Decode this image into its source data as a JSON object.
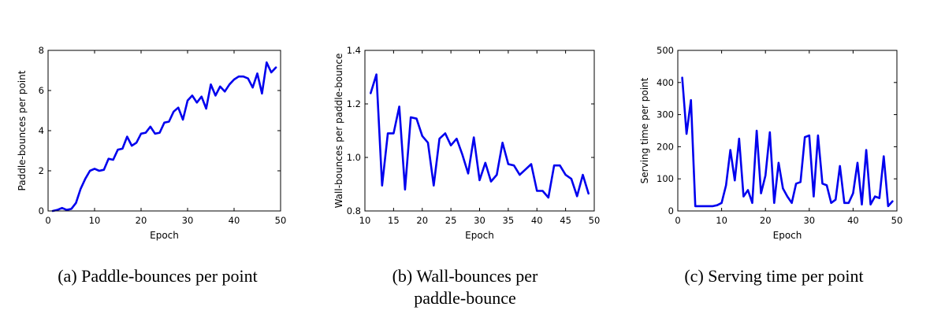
{
  "chart_data": [
    {
      "type": "line",
      "xlabel": "Epoch",
      "ylabel": "Paddle-bounces per point",
      "caption": "(a) Paddle-bounces per point",
      "xlim": [
        0,
        50
      ],
      "ylim": [
        0,
        8
      ],
      "xticks": [
        "0",
        "10",
        "20",
        "30",
        "40",
        "50"
      ],
      "yticks": [
        "0",
        "2",
        "4",
        "6",
        "8"
      ],
      "color": "#0000ee",
      "x": [
        1,
        2,
        3,
        4,
        5,
        6,
        7,
        8,
        9,
        10,
        11,
        12,
        13,
        14,
        15,
        16,
        17,
        18,
        19,
        20,
        21,
        22,
        23,
        24,
        25,
        26,
        27,
        28,
        29,
        30,
        31,
        32,
        33,
        34,
        35,
        36,
        37,
        38,
        39,
        40,
        41,
        42,
        43,
        44,
        45,
        46,
        47,
        48,
        49
      ],
      "values": [
        0.0,
        0.05,
        0.15,
        0.05,
        0.1,
        0.4,
        1.1,
        1.6,
        2.0,
        2.1,
        2.0,
        2.05,
        2.6,
        2.55,
        3.05,
        3.1,
        3.7,
        3.25,
        3.4,
        3.85,
        3.9,
        4.2,
        3.85,
        3.9,
        4.4,
        4.45,
        4.95,
        5.15,
        4.55,
        5.5,
        5.75,
        5.4,
        5.7,
        5.1,
        6.3,
        5.75,
        6.2,
        5.95,
        6.3,
        6.55,
        6.7,
        6.7,
        6.6,
        6.15,
        6.85,
        5.85,
        7.4,
        6.9,
        7.15
      ]
    },
    {
      "type": "line",
      "xlabel": "Epoch",
      "ylabel": "Wall-bounces per paddle-bounce",
      "caption": "(b) Wall-bounces per paddle-bounce",
      "xlim": [
        10,
        50
      ],
      "ylim": [
        0.8,
        1.4
      ],
      "xticks": [
        "10",
        "15",
        "20",
        "25",
        "30",
        "35",
        "40",
        "45",
        "50"
      ],
      "yticks": [
        "0.8",
        "1.0",
        "1.2",
        "1.4"
      ],
      "color": "#0000ee",
      "x": [
        11,
        12,
        13,
        14,
        15,
        16,
        17,
        18,
        19,
        20,
        21,
        22,
        23,
        24,
        25,
        26,
        27,
        28,
        29,
        30,
        31,
        32,
        33,
        34,
        35,
        36,
        37,
        38,
        39,
        40,
        41,
        42,
        43,
        44,
        45,
        46,
        47,
        48,
        49
      ],
      "values": [
        1.24,
        1.31,
        0.895,
        1.09,
        1.09,
        1.19,
        0.88,
        1.15,
        1.145,
        1.08,
        1.055,
        0.895,
        1.07,
        1.09,
        1.045,
        1.07,
        1.01,
        0.94,
        1.075,
        0.915,
        0.98,
        0.91,
        0.935,
        1.055,
        0.975,
        0.97,
        0.935,
        0.955,
        0.975,
        0.875,
        0.875,
        0.85,
        0.97,
        0.97,
        0.935,
        0.92,
        0.855,
        0.935,
        0.865
      ]
    },
    {
      "type": "line",
      "xlabel": "Epoch",
      "ylabel": "Serving time per point",
      "caption": "(c) Serving time per point",
      "xlim": [
        0,
        50
      ],
      "ylim": [
        0,
        500
      ],
      "xticks": [
        "0",
        "10",
        "20",
        "30",
        "40",
        "50"
      ],
      "yticks": [
        "0",
        "100",
        "200",
        "300",
        "400",
        "500"
      ],
      "color": "#0000ee",
      "x": [
        1,
        2,
        3,
        4,
        5,
        6,
        7,
        8,
        9,
        10,
        11,
        12,
        13,
        14,
        15,
        16,
        17,
        18,
        19,
        20,
        21,
        22,
        23,
        24,
        25,
        26,
        27,
        28,
        29,
        30,
        31,
        32,
        33,
        34,
        35,
        36,
        37,
        38,
        39,
        40,
        41,
        42,
        43,
        44,
        45,
        46,
        47,
        48,
        49
      ],
      "values": [
        415,
        240,
        345,
        15,
        15,
        15,
        15,
        15,
        18,
        25,
        80,
        190,
        95,
        225,
        45,
        65,
        25,
        250,
        55,
        110,
        245,
        25,
        150,
        70,
        45,
        25,
        85,
        90,
        230,
        235,
        45,
        235,
        85,
        80,
        25,
        35,
        140,
        25,
        25,
        55,
        150,
        20,
        190,
        20,
        45,
        40,
        170,
        15,
        30
      ]
    }
  ]
}
